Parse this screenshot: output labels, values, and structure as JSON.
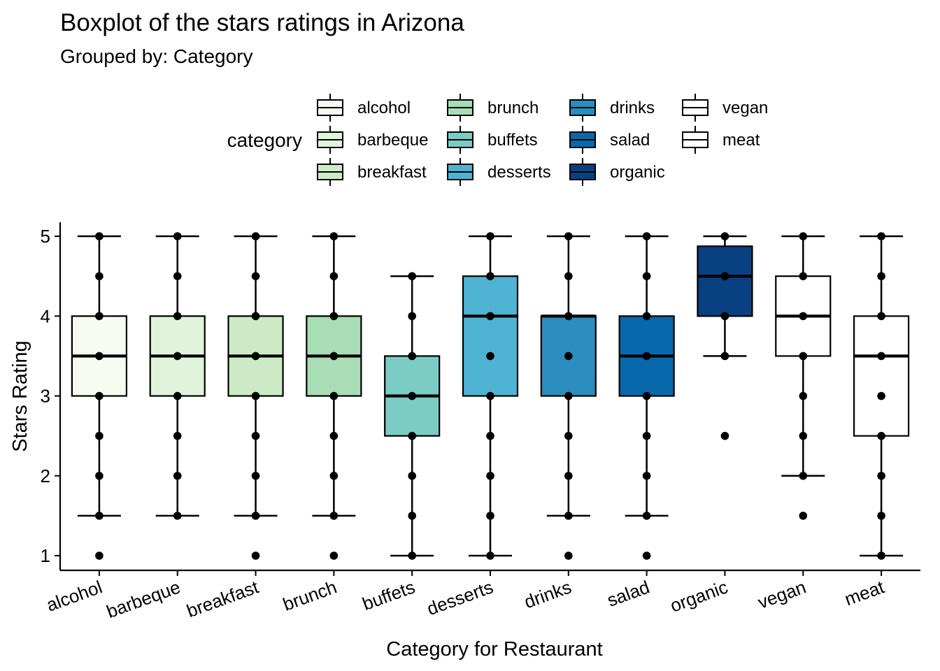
{
  "chart_data": {
    "type": "boxplot",
    "title": "Boxplot of the stars ratings in Arizona",
    "subtitle": "Grouped by: Category",
    "xlabel": "Category for Restaurant",
    "ylabel": "Stars Rating",
    "ylim": [
      0.8,
      5.2
    ],
    "yticks": [
      "1",
      "2",
      "3",
      "4",
      "5"
    ],
    "grid": false,
    "legend": {
      "title": "category",
      "placement": "top"
    },
    "categories": [
      "alcohol",
      "barbeque",
      "breakfast",
      "brunch",
      "buffets",
      "desserts",
      "drinks",
      "salad",
      "organic",
      "vegan",
      "meat"
    ],
    "series": [
      {
        "name": "alcohol",
        "color": "#F7FCF0",
        "lower_whisker": 1.5,
        "q1": 3.0,
        "median": 3.5,
        "q3": 4.0,
        "upper_whisker": 5.0,
        "points": [
          1.0,
          1.5,
          2.0,
          2.5,
          3.0,
          3.5,
          4.0,
          4.5,
          5.0
        ]
      },
      {
        "name": "barbeque",
        "color": "#E0F3DB",
        "lower_whisker": 1.5,
        "q1": 3.0,
        "median": 3.5,
        "q3": 4.0,
        "upper_whisker": 5.0,
        "points": [
          1.5,
          2.0,
          2.5,
          3.0,
          3.5,
          4.0,
          4.5,
          5.0
        ]
      },
      {
        "name": "breakfast",
        "color": "#CCEBC5",
        "lower_whisker": 1.5,
        "q1": 3.0,
        "median": 3.5,
        "q3": 4.0,
        "upper_whisker": 5.0,
        "points": [
          1.0,
          1.5,
          2.0,
          2.5,
          3.0,
          3.5,
          4.0,
          4.5,
          5.0
        ]
      },
      {
        "name": "brunch",
        "color": "#A8DDB5",
        "lower_whisker": 1.5,
        "q1": 3.0,
        "median": 3.5,
        "q3": 4.0,
        "upper_whisker": 5.0,
        "points": [
          1.0,
          1.5,
          2.0,
          2.5,
          3.0,
          3.5,
          4.0,
          4.5,
          5.0
        ]
      },
      {
        "name": "buffets",
        "color": "#7BCCC4",
        "lower_whisker": 1.0,
        "q1": 2.5,
        "median": 3.0,
        "q3": 3.5,
        "upper_whisker": 4.5,
        "points": [
          1.0,
          1.5,
          2.0,
          2.5,
          3.0,
          3.5,
          4.0,
          4.5
        ]
      },
      {
        "name": "desserts",
        "color": "#4EB3D3",
        "lower_whisker": 1.0,
        "q1": 3.0,
        "median": 4.0,
        "q3": 4.5,
        "upper_whisker": 5.0,
        "points": [
          1.0,
          1.5,
          2.0,
          2.5,
          3.0,
          3.5,
          4.0,
          4.5,
          5.0
        ]
      },
      {
        "name": "drinks",
        "color": "#2B8CBE",
        "lower_whisker": 1.5,
        "q1": 3.0,
        "median": 4.0,
        "q3": 4.0,
        "upper_whisker": 5.0,
        "points": [
          1.0,
          1.5,
          2.0,
          2.5,
          3.0,
          3.5,
          4.0,
          4.5,
          5.0
        ]
      },
      {
        "name": "salad",
        "color": "#0868AC",
        "lower_whisker": 1.5,
        "q1": 3.0,
        "median": 3.5,
        "q3": 4.0,
        "upper_whisker": 5.0,
        "points": [
          1.0,
          1.5,
          2.0,
          2.5,
          3.0,
          3.5,
          4.0,
          4.5,
          5.0
        ]
      },
      {
        "name": "organic",
        "color": "#084081",
        "lower_whisker": 3.5,
        "q1": 4.0,
        "median": 4.5,
        "q3": 4.875,
        "upper_whisker": 5.0,
        "points": [
          2.5,
          3.5,
          4.0,
          4.5,
          5.0
        ]
      },
      {
        "name": "vegan",
        "color": "#FFFFFF",
        "lower_whisker": 2.0,
        "q1": 3.5,
        "median": 4.0,
        "q3": 4.5,
        "upper_whisker": 5.0,
        "points": [
          1.5,
          2.0,
          2.5,
          3.0,
          3.5,
          4.0,
          4.5,
          5.0
        ]
      },
      {
        "name": "meat",
        "color": "#FFFFFF",
        "lower_whisker": 1.0,
        "q1": 2.5,
        "median": 3.5,
        "q3": 4.0,
        "upper_whisker": 5.0,
        "points": [
          1.0,
          1.5,
          2.0,
          2.5,
          3.0,
          3.5,
          4.0,
          4.5,
          5.0
        ]
      }
    ]
  }
}
